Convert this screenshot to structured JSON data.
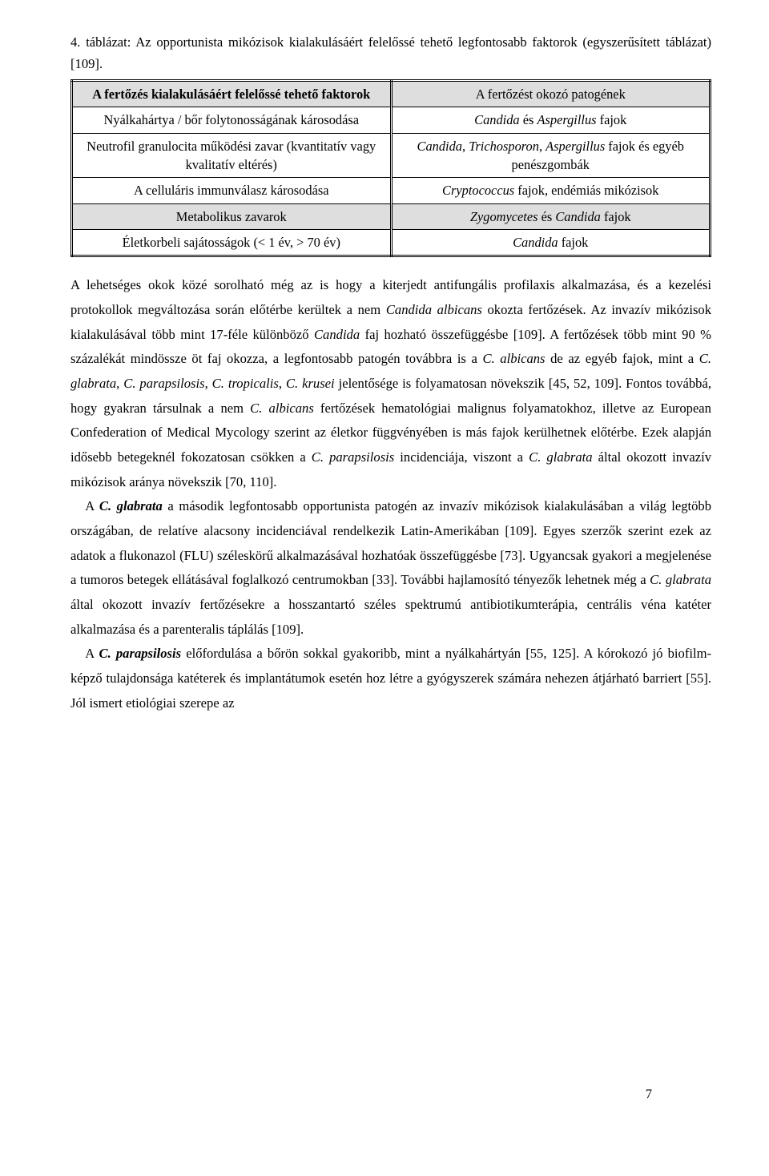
{
  "caption": "4. táblázat: Az opportunista mikózisok kialakulásáért felelőssé tehető legfontosabb faktorok (egyszerűsített táblázat) [109].",
  "table": {
    "rows": [
      {
        "left": "A fertőzés kialakulásáért felelőssé tehető faktorok",
        "right": "A fertőzést okozó patogének",
        "head": true,
        "shaded": true
      },
      {
        "left": "Nyálkahártya / bőr folytonosságának károsodása",
        "right_html": "<i>Candida</i> és <i>Aspergillus</i> fajok"
      },
      {
        "left": "Neutrofil granulocita működési zavar (kvantitatív vagy kvalitatív eltérés)",
        "right_html": "<i>Candida</i>, <i>Trichosporon</i>, <i>Aspergillus</i> fajok és egyéb penészgombák"
      },
      {
        "left": "A celluláris immunválasz károsodása",
        "right_html": "<i>Cryptococcus</i> fajok, endémiás mikózisok"
      },
      {
        "left": "Metabolikus zavarok",
        "right_html": "<i>Zygomycetes</i> és <i>Candida</i> fajok",
        "shaded": true
      },
      {
        "left": "Életkorbeli sajátosságok (< 1 év, > 70 év)",
        "right_html": "<i>Candida</i> fajok"
      }
    ]
  },
  "para1_html": "A lehetséges okok közé sorolható még az is hogy a kiterjedt antifungális profilaxis alkalmazása, és a kezelési protokollok megváltozása során előtérbe kerültek a nem <i>Candida albicans</i> okozta fertőzések. Az invazív mikózisok kialakulásával több mint 17-féle különböző <i>Candida</i> faj hozható összefüggésbe [109]. A fertőzések több mint 90 % százalékát mindössze öt faj okozza, a legfontosabb patogén továbbra is a <i>C. albicans</i> de az egyéb fajok, mint a <i>C. glabrata</i>, <i>C. parapsilosis</i>, <i>C. tropicalis</i>, <i>C. krusei</i> jelentősége is folyamatosan növekszik [45, 52, 109]. Fontos továbbá, hogy gyakran társulnak a nem <i>C. albicans</i> fertőzések hematológiai malignus folyamatokhoz, illetve az European Confederation of Medical Mycology szerint az életkor függvényében is más fajok kerülhetnek előtérbe. Ezek alapján idősebb betegeknél fokozatosan csökken a <i>C. parapsilosis</i> incidenciája, viszont a <i>C. glabrata</i> által okozott invazív mikózisok aránya növekszik [70, 110].",
  "para2_html": "A <i><b>C. glabrata</b></i> a második legfontosabb opportunista patogén az invazív mikózisok kialakulásában a világ legtöbb országában, de relatíve alacsony incidenciával rendelkezik Latin-Amerikában [109]. Egyes szerzők szerint ezek az adatok a flukonazol (FLU) széleskörű alkalmazásával hozhatóak összefüggésbe [73]. Ugyancsak gyakori a megjelenése a tumoros betegek ellátásával foglalkozó centrumokban [33]. További hajlamosító tényezők lehetnek még a <i>C. glabrata</i> által okozott invazív fertőzésekre a hosszantartó széles spektrumú antibiotikumterápia, centrális véna katéter alkalmazása és a parenteralis táplálás [109].",
  "para3_html": "A <i><b>C. parapsilosis</b></i> előfordulása a bőrön sokkal gyakoribb, mint a nyálkahártyán [55, 125]. A kórokozó jó biofilm-képző tulajdonsága katéterek és implantátumok esetén hoz létre a gyógyszerek számára nehezen átjárható barriert [55]. Jól ismert etiológiai szerepe az",
  "page_number": "7"
}
